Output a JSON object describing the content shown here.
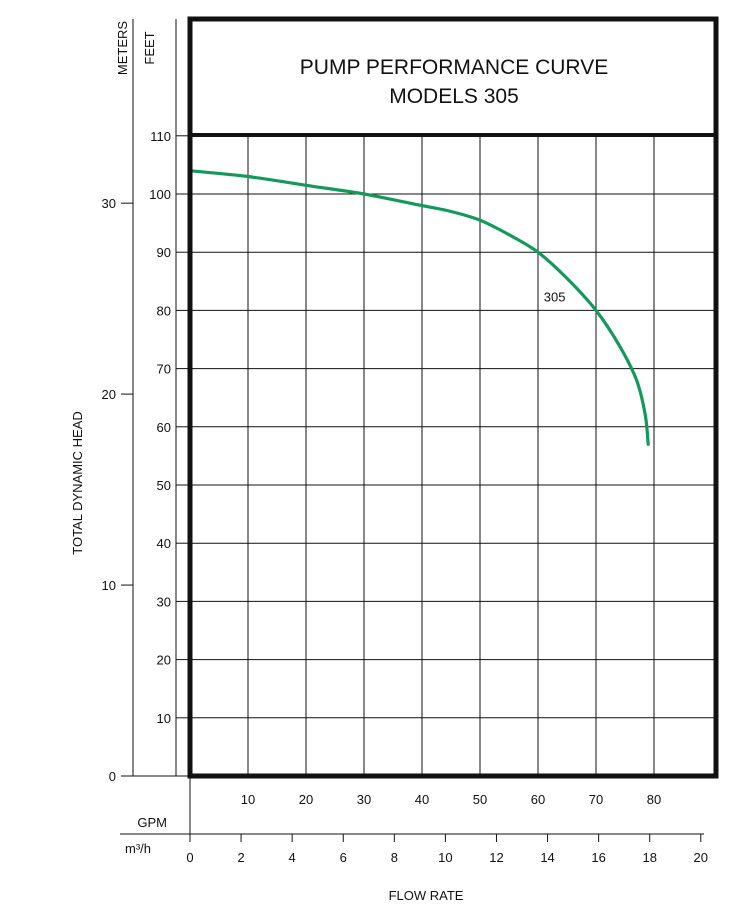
{
  "chart_data": {
    "type": "line",
    "title": "PUMP PERFORMANCE CURVE",
    "subtitle": "MODELS 305",
    "xlabel": "FLOW RATE",
    "ylabel": "TOTAL DYNAMIC HEAD",
    "x_units": {
      "primary": "GPM",
      "secondary": "m³/h"
    },
    "y_units": {
      "primary": "FEET",
      "secondary": "METERS"
    },
    "xlim": [
      0,
      90
    ],
    "ylim": [
      0,
      110
    ],
    "x_ticks_gpm": [
      10,
      20,
      30,
      40,
      50,
      60,
      70,
      80
    ],
    "x_ticks_m3h": [
      0,
      2,
      4,
      6,
      8,
      10,
      12,
      14,
      16,
      18,
      20
    ],
    "y_ticks_feet": [
      10,
      20,
      30,
      40,
      50,
      60,
      70,
      80,
      90,
      100,
      110
    ],
    "y_ticks_meters": [
      0,
      10,
      20,
      30
    ],
    "grid": true,
    "series": [
      {
        "name": "305",
        "color": "#13995a",
        "x": [
          0,
          10,
          20,
          30,
          40,
          45,
          50,
          55,
          60,
          65,
          70,
          74,
          77,
          78.5,
          79
        ],
        "y": [
          104,
          103,
          101.5,
          100,
          98,
          97,
          95.5,
          93,
          90,
          85.5,
          80,
          74,
          68,
          62,
          57
        ]
      }
    ]
  }
}
